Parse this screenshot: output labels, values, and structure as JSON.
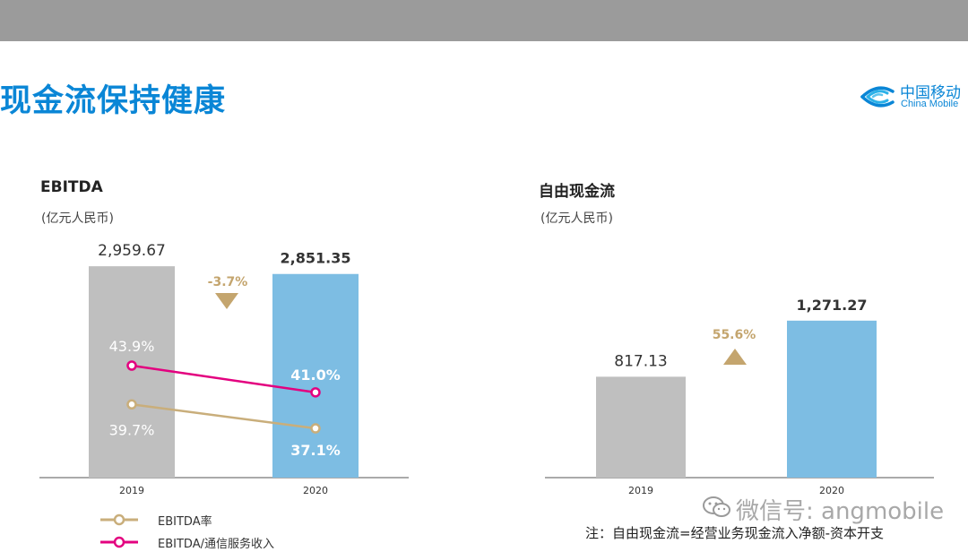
{
  "header": {
    "title": "现金流保持健康"
  },
  "logo": {
    "cn": "中国移动",
    "en": "China Mobile"
  },
  "colors": {
    "accent": "#0a86d6",
    "bar_2019": "#bfbfbf",
    "bar_2020": "#7dbde3",
    "rate_line": "#c9ae7b",
    "ratio_line": "#e3007f",
    "change": "#c4a56e"
  },
  "chart_data": [
    {
      "type": "bar",
      "title": "EBITDA",
      "unit": "(亿元人民币)",
      "categories": [
        "2019",
        "2020"
      ],
      "values": [
        2959.67,
        2851.35
      ],
      "value_labels": [
        "2,959.67",
        "2,851.35"
      ],
      "change_label": "-3.7%",
      "change_direction": "down",
      "lines": [
        {
          "name": "EBITDA/通信服务收入",
          "values": [
            43.9,
            41.0
          ],
          "labels": [
            "43.9%",
            "41.0%"
          ],
          "color": "#e3007f"
        },
        {
          "name": "EBITDA率",
          "values": [
            39.7,
            37.1
          ],
          "labels": [
            "39.7%",
            "37.1%"
          ],
          "color": "#c9ae7b"
        }
      ],
      "legend": [
        "EBITDA率",
        "EBITDA/通信服务收入"
      ],
      "legend_position": "bottom-left"
    },
    {
      "type": "bar",
      "title": "自由现金流",
      "unit": "(亿元人民币)",
      "categories": [
        "2019",
        "2020"
      ],
      "values": [
        817.13,
        1271.27
      ],
      "value_labels": [
        "817.13",
        "1,271.27"
      ],
      "change_label": "55.6%",
      "change_direction": "up",
      "note": "注：自由现金流=经营业务现金流入净额-资本开支"
    }
  ],
  "watermark": {
    "text": "微信号: angmobile",
    "icon": "wechat-icon"
  }
}
